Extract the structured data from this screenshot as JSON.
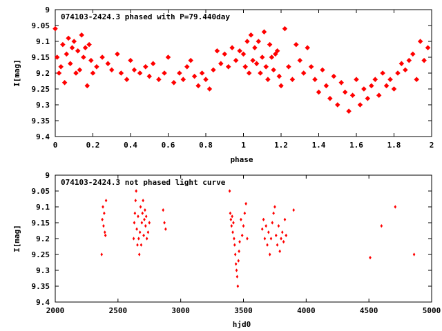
{
  "chart_data": [
    {
      "type": "scatter",
      "title": "074103-2424.3 phased with P=79.440day",
      "xlabel": "phase",
      "ylabel": "I[mag]",
      "xlim": [
        0,
        2
      ],
      "ylim": [
        9.4,
        9
      ],
      "y_inverted": true,
      "xticks": [
        "0",
        "0.2",
        "0.4",
        "0.6",
        "0.8",
        "1",
        "1.2",
        "1.4",
        "1.6",
        "1.8",
        "2"
      ],
      "yticks": [
        "9",
        "9.05",
        "9.1",
        "9.15",
        "9.2",
        "9.25",
        "9.3",
        "9.35",
        "9.4"
      ],
      "marker": "star",
      "color": "#ff0000",
      "series": [
        {
          "x": [
            0.0,
            0.01,
            0.02,
            0.03,
            0.04,
            0.05,
            0.06,
            0.07,
            0.08,
            0.09,
            0.1,
            0.11,
            0.12,
            0.13,
            0.14,
            0.15,
            0.16,
            0.17,
            0.18,
            0.19,
            0.2,
            0.22,
            0.25,
            0.28,
            0.3,
            0.33,
            0.35,
            0.38,
            0.4,
            0.42,
            0.45,
            0.48,
            0.5,
            0.52,
            0.55,
            0.58,
            0.6,
            0.63,
            0.66,
            0.68,
            0.7,
            0.72,
            0.74,
            0.76,
            0.78,
            0.8,
            0.82,
            0.84,
            0.86,
            0.88,
            0.9,
            0.92,
            0.94,
            0.96,
            0.98,
            1.0,
            1.01,
            1.02,
            1.03,
            1.04,
            1.05,
            1.06,
            1.07,
            1.08,
            1.09,
            1.1,
            1.11,
            1.12,
            1.13,
            1.14,
            1.15,
            1.16,
            1.17,
            1.18,
            1.19,
            1.2,
            1.22,
            1.24,
            1.26,
            1.28,
            1.3,
            1.32,
            1.34,
            1.36,
            1.38,
            1.4,
            1.42,
            1.44,
            1.46,
            1.48,
            1.5,
            1.52,
            1.54,
            1.56,
            1.58,
            1.6,
            1.62,
            1.64,
            1.66,
            1.68,
            1.7,
            1.72,
            1.74,
            1.76,
            1.78,
            1.8,
            1.82,
            1.84,
            1.86,
            1.88,
            1.9,
            1.92,
            1.94,
            1.96,
            1.98
          ],
          "values": [
            9.06,
            9.15,
            9.2,
            9.18,
            9.11,
            9.23,
            9.14,
            9.09,
            9.17,
            9.12,
            9.1,
            9.2,
            9.13,
            9.19,
            9.08,
            9.15,
            9.12,
            9.24,
            9.11,
            9.16,
            9.2,
            9.18,
            9.15,
            9.17,
            9.19,
            9.14,
            9.2,
            9.22,
            9.16,
            9.19,
            9.2,
            9.18,
            9.21,
            9.17,
            9.22,
            9.2,
            9.15,
            9.23,
            9.2,
            9.22,
            9.18,
            9.16,
            9.21,
            9.24,
            9.2,
            9.22,
            9.25,
            9.19,
            9.13,
            9.17,
            9.14,
            9.18,
            9.12,
            9.16,
            9.13,
            9.14,
            9.18,
            9.1,
            9.2,
            9.08,
            9.16,
            9.12,
            9.17,
            9.1,
            9.2,
            9.15,
            9.07,
            9.18,
            9.22,
            9.11,
            9.15,
            9.19,
            9.14,
            9.13,
            9.21,
            9.24,
            9.06,
            9.18,
            9.22,
            9.11,
            9.16,
            9.2,
            9.12,
            9.18,
            9.22,
            9.26,
            9.19,
            9.24,
            9.28,
            9.21,
            9.3,
            9.23,
            9.26,
            9.32,
            9.27,
            9.22,
            9.3,
            9.25,
            9.28,
            9.24,
            9.22,
            9.27,
            9.2,
            9.24,
            9.22,
            9.25,
            9.2,
            9.17,
            9.19,
            9.16,
            9.14,
            9.22,
            9.1,
            9.16,
            9.12
          ]
        }
      ]
    },
    {
      "type": "scatter",
      "title": "074103-2424.3 not phased light curve",
      "xlabel": "hjd0",
      "ylabel": "I[mag]",
      "xlim": [
        2000,
        5000
      ],
      "ylim": [
        9.4,
        9
      ],
      "y_inverted": true,
      "xticks": [
        "2000",
        "2500",
        "3000",
        "3500",
        "4000",
        "4500",
        "5000"
      ],
      "yticks": [
        "9",
        "9.05",
        "9.1",
        "9.15",
        "9.2",
        "9.25",
        "9.3",
        "9.35",
        "9.4"
      ],
      "marker": "diamond",
      "color": "#ff0000",
      "series": [
        {
          "x": [
            2370,
            2375,
            2380,
            2385,
            2390,
            2395,
            2400,
            2405,
            2625,
            2630,
            2635,
            2640,
            2645,
            2650,
            2655,
            2660,
            2665,
            2670,
            2675,
            2680,
            2685,
            2690,
            2695,
            2700,
            2705,
            2710,
            2715,
            2720,
            2725,
            2730,
            2740,
            2750,
            2860,
            2870,
            2880,
            3390,
            3395,
            3400,
            3405,
            3410,
            3415,
            3420,
            3425,
            3430,
            3435,
            3440,
            3445,
            3450,
            3455,
            3460,
            3465,
            3470,
            3480,
            3490,
            3500,
            3510,
            3520,
            3530,
            3650,
            3660,
            3670,
            3680,
            3690,
            3700,
            3710,
            3720,
            3730,
            3740,
            3750,
            3760,
            3770,
            3780,
            3790,
            3800,
            3810,
            3820,
            3830,
            3840,
            3900,
            4510,
            4600,
            4710,
            4860
          ],
          "values": [
            9.25,
            9.14,
            9.1,
            9.16,
            9.12,
            9.18,
            9.19,
            9.08,
            9.2,
            9.15,
            9.12,
            9.08,
            9.05,
            9.17,
            9.22,
            9.13,
            9.2,
            9.25,
            9.18,
            9.1,
            9.22,
            9.15,
            9.12,
            9.08,
            9.19,
            9.14,
            9.11,
            9.16,
            9.13,
            9.2,
            9.18,
            9.15,
            9.11,
            9.15,
            9.17,
            9.05,
            9.12,
            9.14,
            9.16,
            9.13,
            9.18,
            9.15,
            9.2,
            9.22,
            9.25,
            9.28,
            9.3,
            9.32,
            9.35,
            9.27,
            9.24,
            9.21,
            9.14,
            9.19,
            9.16,
            9.12,
            9.09,
            9.2,
            9.17,
            9.14,
            9.2,
            9.16,
            9.22,
            9.18,
            9.25,
            9.2,
            9.15,
            9.12,
            9.1,
            9.19,
            9.22,
            9.16,
            9.24,
            9.2,
            9.18,
            9.21,
            9.14,
            9.19,
            9.11,
            9.26,
            9.16,
            9.1,
            9.25
          ]
        }
      ]
    }
  ]
}
